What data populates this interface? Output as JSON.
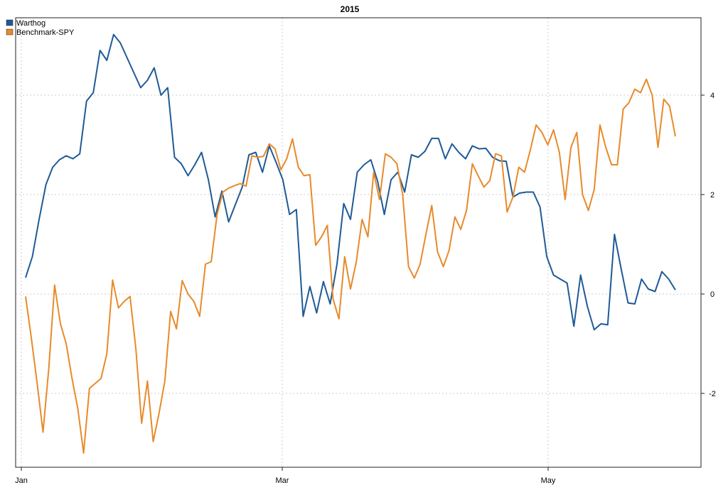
{
  "chart_data": {
    "type": "line",
    "title": "2015",
    "xlabel": "",
    "ylabel": "",
    "x_ticks": [
      "Jan",
      "Mar",
      "May"
    ],
    "y_ticks": [
      -2,
      0,
      2,
      4
    ],
    "ylim": [
      -3.4,
      5.7
    ],
    "grid": true,
    "legend": "top-left",
    "series": [
      {
        "name": "Warthog",
        "color": "#1f5a96",
        "values": [
          0.33,
          0.75,
          1.5,
          2.2,
          2.55,
          2.7,
          2.78,
          2.72,
          2.82,
          3.88,
          4.05,
          4.9,
          4.7,
          5.22,
          5.05,
          4.75,
          4.45,
          4.15,
          4.3,
          4.55,
          4.0,
          4.15,
          2.75,
          2.62,
          2.38,
          2.6,
          2.85,
          2.3,
          1.55,
          2.07,
          1.45,
          1.8,
          2.15,
          2.8,
          2.85,
          2.45,
          2.98,
          2.65,
          2.3,
          1.6,
          1.7,
          -0.45,
          0.15,
          -0.38,
          0.25,
          -0.2,
          0.6,
          1.82,
          1.5,
          2.45,
          2.6,
          2.7,
          2.27,
          1.6,
          2.3,
          2.45,
          2.05,
          2.8,
          2.75,
          2.87,
          3.13,
          3.13,
          2.72,
          3.02,
          2.85,
          2.72,
          2.98,
          2.92,
          2.93,
          2.75,
          2.68,
          2.67,
          1.95,
          2.03,
          2.05,
          2.05,
          1.75,
          0.75,
          0.38,
          0.3,
          0.22,
          -0.65,
          0.38,
          -0.25,
          -0.72,
          -0.6,
          -0.62,
          1.2,
          0.5,
          -0.18,
          -0.2,
          0.3,
          0.1,
          0.05,
          0.45,
          0.3,
          0.08
        ]
      },
      {
        "name": "Benchmark-SPY",
        "color": "#e88a2a",
        "values": [
          -0.05,
          -0.9,
          -1.8,
          -2.78,
          -1.5,
          0.18,
          -0.6,
          -1.0,
          -1.7,
          -2.3,
          -3.2,
          -1.9,
          -1.8,
          -1.7,
          -1.2,
          0.28,
          -0.28,
          -0.15,
          -0.05,
          -1.1,
          -2.6,
          -1.75,
          -2.97,
          -2.4,
          -1.75,
          -0.35,
          -0.7,
          0.27,
          0.0,
          -0.15,
          -0.45,
          0.6,
          0.65,
          1.6,
          2.05,
          2.13,
          2.18,
          2.22,
          2.17,
          2.78,
          2.75,
          2.77,
          3.02,
          2.92,
          2.5,
          2.72,
          3.12,
          2.55,
          2.38,
          2.4,
          0.98,
          1.15,
          1.38,
          -0.1,
          -0.5,
          0.75,
          0.1,
          0.65,
          1.5,
          1.15,
          2.45,
          1.9,
          2.82,
          2.75,
          2.62,
          2.0,
          0.55,
          0.32,
          0.6,
          1.2,
          1.78,
          0.85,
          0.55,
          0.88,
          1.55,
          1.3,
          1.68,
          2.62,
          2.38,
          2.15,
          2.28,
          2.82,
          2.78,
          1.65,
          1.95,
          2.55,
          2.45,
          2.9,
          3.4,
          3.25,
          3.0,
          3.3,
          2.85,
          1.9,
          2.95,
          3.25,
          2.0,
          1.68,
          2.1,
          3.4,
          2.95,
          2.6,
          2.6,
          3.72,
          3.85,
          4.12,
          4.05,
          4.32,
          4.0,
          2.95,
          3.92,
          3.78,
          3.17
        ]
      }
    ]
  }
}
